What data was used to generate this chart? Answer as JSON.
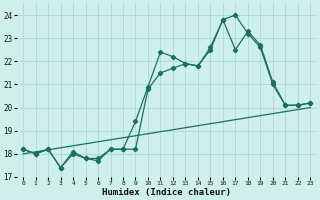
{
  "xlabel": "Humidex (Indice chaleur)",
  "ylabel": "",
  "xlim": [
    -0.5,
    23.5
  ],
  "ylim": [
    17,
    24.5
  ],
  "yticks": [
    17,
    18,
    19,
    20,
    21,
    22,
    23,
    24
  ],
  "xticks": [
    0,
    1,
    2,
    3,
    4,
    5,
    6,
    7,
    8,
    9,
    10,
    11,
    12,
    13,
    14,
    15,
    16,
    17,
    18,
    19,
    20,
    21,
    22,
    23
  ],
  "bg_color": "#cff0ea",
  "grid_color": "#b0ddd5",
  "line_color": "#1a7060",
  "line1_x": [
    0,
    1,
    2,
    3,
    4,
    5,
    6,
    7,
    8,
    9,
    10,
    11,
    12,
    13,
    14,
    15,
    16,
    17,
    18,
    19,
    20,
    21,
    22,
    23
  ],
  "line1_y": [
    18.2,
    18.0,
    18.2,
    17.4,
    18.1,
    17.8,
    17.8,
    18.2,
    18.2,
    19.4,
    20.9,
    22.4,
    22.2,
    21.9,
    21.8,
    22.6,
    23.8,
    22.5,
    23.3,
    22.7,
    21.1,
    20.1,
    20.1,
    20.2
  ],
  "line2_x": [
    0,
    1,
    2,
    3,
    4,
    5,
    6,
    7,
    8,
    9,
    10,
    11,
    12,
    13,
    14,
    15,
    16,
    17,
    18,
    19,
    20,
    21,
    22,
    23
  ],
  "line2_y": [
    18.2,
    18.0,
    18.2,
    17.4,
    18.0,
    17.8,
    17.7,
    18.2,
    18.2,
    18.2,
    20.8,
    21.5,
    21.7,
    21.9,
    21.8,
    22.5,
    23.8,
    24.0,
    23.2,
    22.6,
    21.0,
    20.1,
    20.1,
    20.2
  ],
  "line3_x": [
    0,
    23
  ],
  "line3_y": [
    18.0,
    20.0
  ]
}
